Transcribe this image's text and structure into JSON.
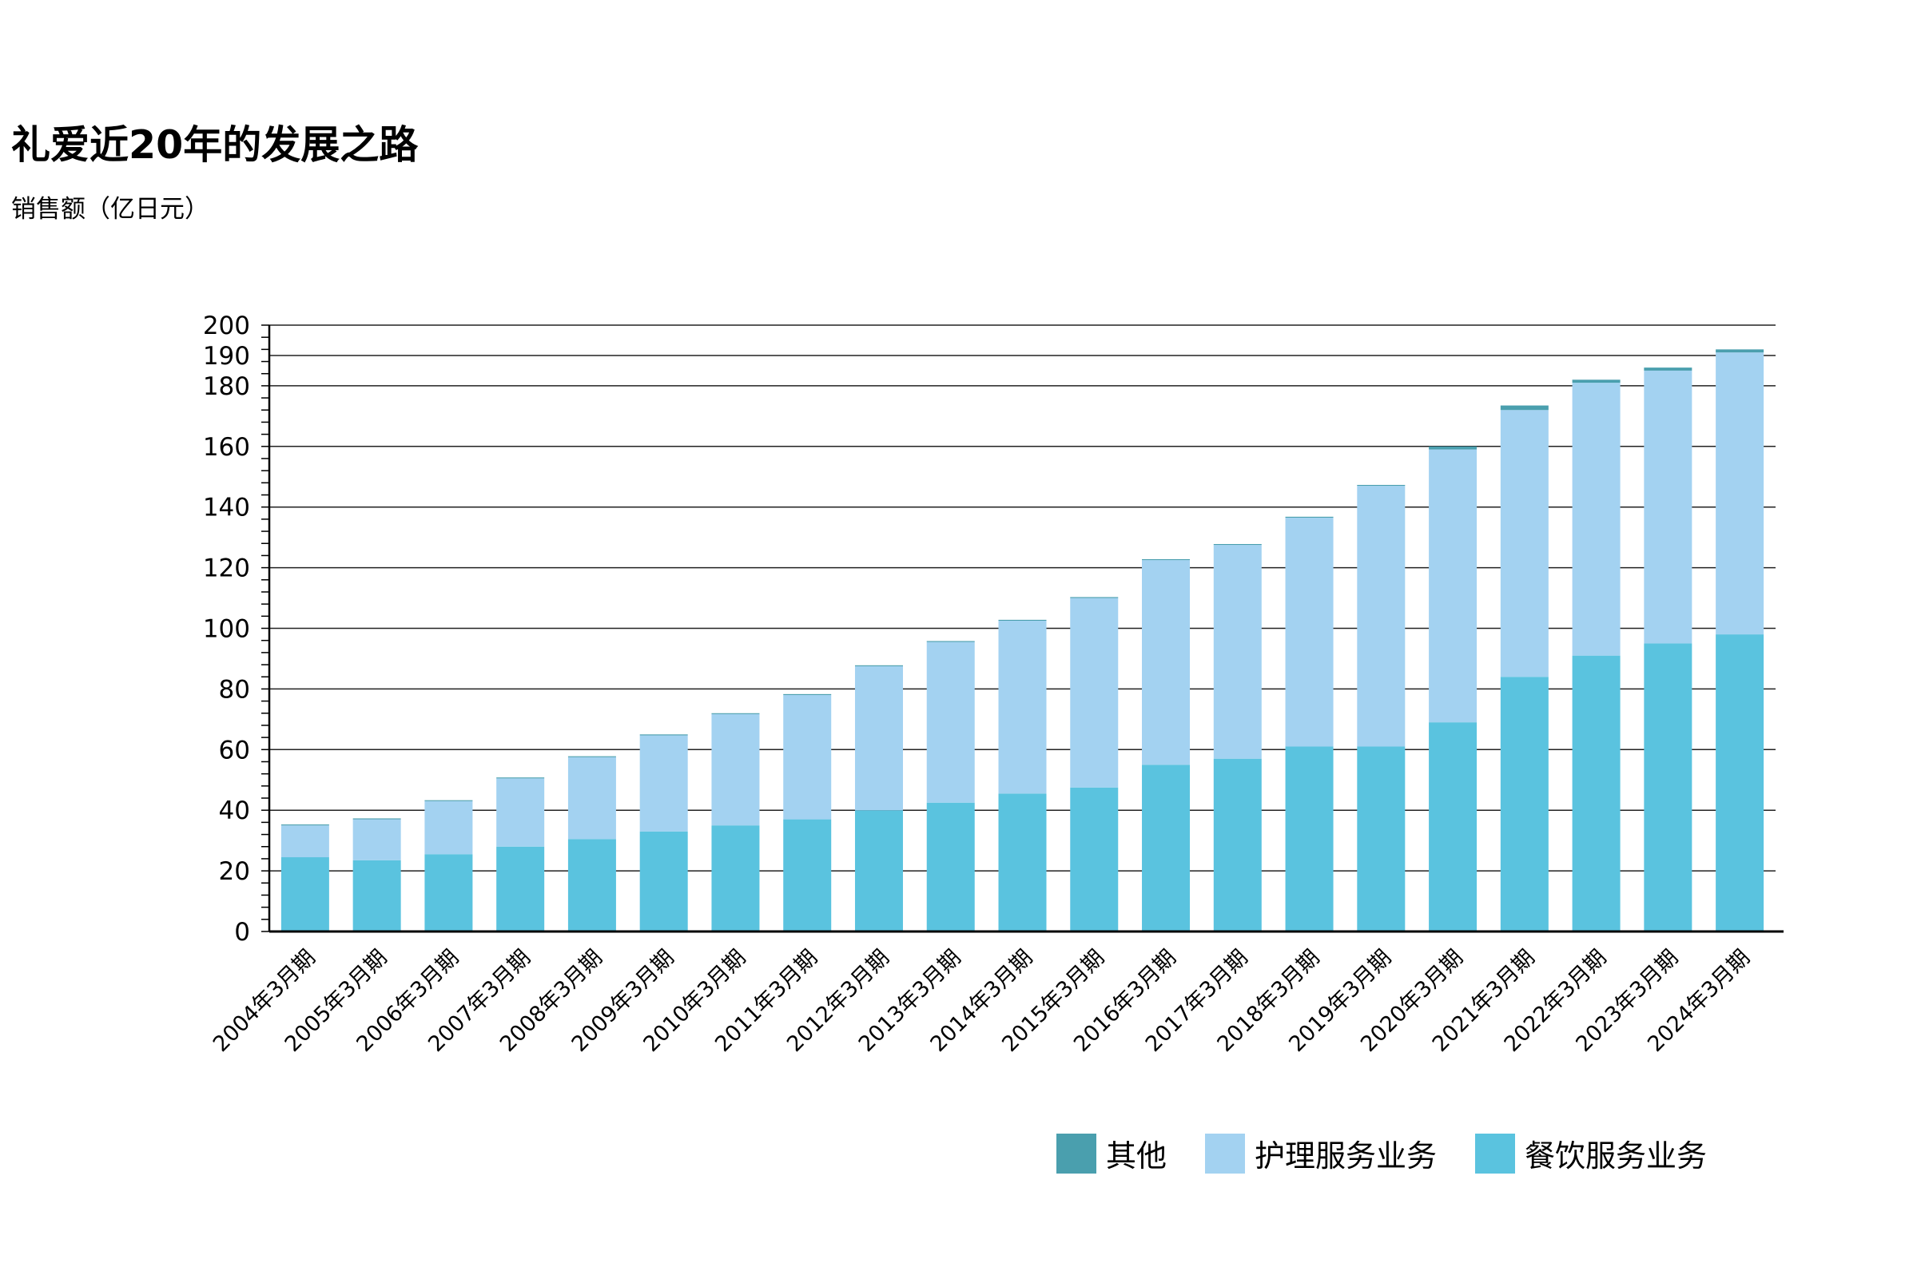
{
  "title": "礼爱近20年的发展之路",
  "unit_label": "销售额（亿日元）",
  "colors": {
    "other": "#4a9fae",
    "care": "#a3d2f1",
    "food": "#5ac3df"
  },
  "chart_data": {
    "type": "bar",
    "stacked": true,
    "title": "礼爱近20年的发展之路",
    "ylabel": "销售额（亿日元）",
    "xlabel": "",
    "ylim": [
      0,
      200
    ],
    "y_ticks": [
      "0",
      "20",
      "40",
      "60",
      "80",
      "100",
      "120",
      "140",
      "160",
      "180",
      "190",
      "200"
    ],
    "grid": true,
    "legend_position": "bottom-right",
    "categories": [
      "2004年3月期",
      "2005年3月期",
      "2006年3月期",
      "2007年3月期",
      "2008年3月期",
      "2009年3月期",
      "2010年3月期",
      "2011年3月期",
      "2012年3月期",
      "2013年3月期",
      "2014年3月期",
      "2015年3月期",
      "2016年3月期",
      "2017年3月期",
      "2018年3月期",
      "2019年3月期",
      "2020年3月期",
      "2021年3月期",
      "2022年3月期",
      "2023年3月期",
      "2024年3月期"
    ],
    "series": [
      {
        "name": "餐饮服务业务",
        "key": "food",
        "values": [
          24.5,
          23.5,
          25.5,
          28,
          30.5,
          33,
          35,
          37,
          40,
          42.5,
          45.5,
          47.5,
          55,
          57,
          61,
          61,
          69,
          84,
          91,
          95,
          98
        ]
      },
      {
        "name": "护理服务业务",
        "key": "care",
        "values": [
          10.5,
          13.5,
          17.5,
          22.5,
          27,
          31.7,
          36.7,
          41,
          47.5,
          53,
          57,
          62.5,
          67.5,
          70.5,
          75.5,
          86,
          90,
          88,
          90,
          90,
          93
        ]
      },
      {
        "name": "其他",
        "key": "other",
        "values": [
          0.3,
          0.3,
          0.3,
          0.3,
          0.3,
          0.3,
          0.3,
          0.3,
          0.3,
          0.3,
          0.3,
          0.3,
          0.3,
          0.3,
          0.3,
          0.3,
          1.0,
          1.5,
          1.0,
          1.0,
          1.0
        ]
      }
    ],
    "legend": [
      {
        "label": "其他",
        "key": "other"
      },
      {
        "label": "护理服务业务",
        "key": "care"
      },
      {
        "label": "餐饮服务业务",
        "key": "food"
      }
    ]
  }
}
